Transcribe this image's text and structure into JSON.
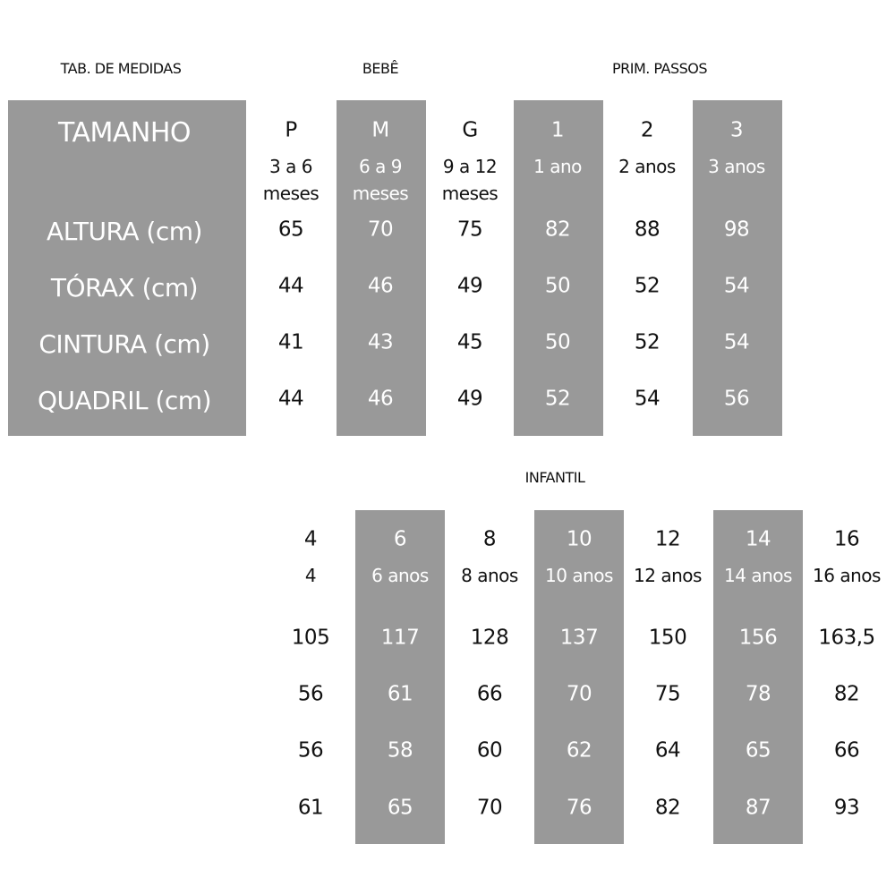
{
  "headers": {
    "table_title": "TAB. DE MEDIDAS",
    "bebe": "BEBÊ",
    "prim_passos": "PRIM. PASSOS",
    "infantil": "INFANTIL"
  },
  "row_labels": [
    "TAMANHO",
    "ALTURA (cm)",
    "TÓRAX (cm)",
    "CINTURA (cm)",
    "QUADRIL (cm)"
  ],
  "top_columns": [
    {
      "size": "P",
      "age1": "3 a 6",
      "age2": "meses",
      "altura": "65",
      "torax": "44",
      "cintura": "41",
      "quadril": "44",
      "shaded": false
    },
    {
      "size": "M",
      "age1": "6 a 9",
      "age2": "meses",
      "altura": "70",
      "torax": "46",
      "cintura": "43",
      "quadril": "46",
      "shaded": true
    },
    {
      "size": "G",
      "age1": "9 a 12",
      "age2": "meses",
      "altura": "75",
      "torax": "49",
      "cintura": "45",
      "quadril": "49",
      "shaded": false
    },
    {
      "size": "1",
      "age1": "1 ano",
      "age2": "",
      "altura": "82",
      "torax": "50",
      "cintura": "50",
      "quadril": "52",
      "shaded": true
    },
    {
      "size": "2",
      "age1": "2 anos",
      "age2": "",
      "altura": "88",
      "torax": "52",
      "cintura": "52",
      "quadril": "54",
      "shaded": false
    },
    {
      "size": "3",
      "age1": "3 anos",
      "age2": "",
      "altura": "98",
      "torax": "54",
      "cintura": "54",
      "quadril": "56",
      "shaded": true
    }
  ],
  "bottom_columns": [
    {
      "size": "4",
      "age1": "4",
      "altura": "105",
      "torax": "56",
      "cintura": "56",
      "quadril": "61",
      "shaded": false
    },
    {
      "size": "6",
      "age1": "6 anos",
      "altura": "117",
      "torax": "61",
      "cintura": "58",
      "quadril": "65",
      "shaded": true
    },
    {
      "size": "8",
      "age1": "8 anos",
      "altura": "128",
      "torax": "66",
      "cintura": "60",
      "quadril": "70",
      "shaded": false
    },
    {
      "size": "10",
      "age1": "10 anos",
      "altura": "137",
      "torax": "70",
      "cintura": "62",
      "quadril": "76",
      "shaded": true
    },
    {
      "size": "12",
      "age1": "12 anos",
      "altura": "150",
      "torax": "75",
      "cintura": "64",
      "quadril": "82",
      "shaded": false
    },
    {
      "size": "14",
      "age1": "14 anos",
      "altura": "156",
      "torax": "78",
      "cintura": "65",
      "quadril": "87",
      "shaded": true
    },
    {
      "size": "16",
      "age1": "16 anos",
      "altura": "163,5",
      "torax": "82",
      "cintura": "66",
      "quadril": "93",
      "shaded": false
    }
  ],
  "colors": {
    "shade": "#999999",
    "text": "#111111",
    "shaded_text": "#ffffff"
  }
}
